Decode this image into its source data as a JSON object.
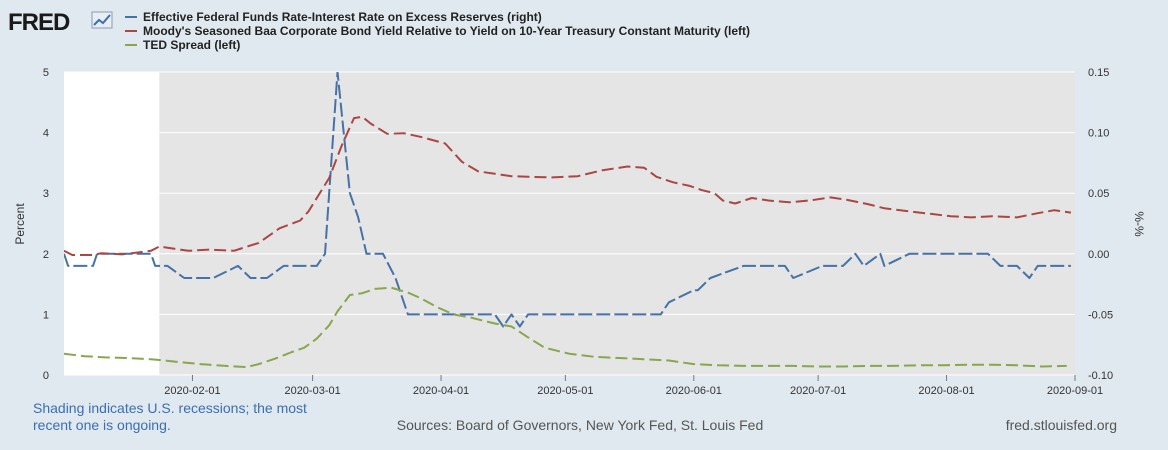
{
  "logo": {
    "text": "FRED"
  },
  "footer": {
    "shading_note_line1": "Shading indicates U.S. recessions; the most",
    "shading_note_line2": "recent one is ongoing.",
    "sources": "Sources: Board of Governors, New York Fed, St. Louis Fed",
    "site": "fred.stlouisfed.org"
  },
  "chart_data": {
    "type": "line",
    "title": "",
    "ylabel_left": "Percent",
    "ylabel_right": "%-%",
    "ylim_left": [
      0,
      5
    ],
    "ylim_right": [
      -0.1,
      0.15
    ],
    "y_ticks_left": [
      "0",
      "1",
      "2",
      "3",
      "4",
      "5"
    ],
    "y_ticks_right": [
      "-0.10",
      "-0.05",
      "0.00",
      "0.05",
      "0.10",
      "0.15"
    ],
    "x_range_days": [
      0,
      244
    ],
    "x_ticks": [
      {
        "label": "2020-02-01",
        "day": 31
      },
      {
        "label": "2020-03-01",
        "day": 60
      },
      {
        "label": "2020-04-01",
        "day": 91
      },
      {
        "label": "2020-05-01",
        "day": 121
      },
      {
        "label": "2020-06-01",
        "day": 152
      },
      {
        "label": "2020-07-01",
        "day": 182
      },
      {
        "label": "2020-08-01",
        "day": 213
      },
      {
        "label": "2020-09-01",
        "day": 244
      }
    ],
    "recession_start_day": 23,
    "series": [
      {
        "name": "Effective Federal Funds Rate-Interest Rate on Excess Reserves (right)",
        "axis": "right",
        "color": "#4572a7",
        "points": [
          [
            0,
            0.0
          ],
          [
            1,
            -0.01
          ],
          [
            4,
            -0.01
          ],
          [
            7,
            -0.01
          ],
          [
            8,
            0.0
          ],
          [
            14,
            0.0
          ],
          [
            21,
            0.0
          ],
          [
            22,
            -0.01
          ],
          [
            25,
            -0.01
          ],
          [
            29,
            -0.02
          ],
          [
            36,
            -0.02
          ],
          [
            42,
            -0.01
          ],
          [
            45,
            -0.02
          ],
          [
            49,
            -0.02
          ],
          [
            53,
            -0.01
          ],
          [
            61,
            -0.01
          ],
          [
            63,
            0.0
          ],
          [
            66,
            0.15
          ],
          [
            69,
            0.05
          ],
          [
            71,
            0.03
          ],
          [
            73,
            0.0
          ],
          [
            77,
            0.0
          ],
          [
            80,
            -0.02
          ],
          [
            83,
            -0.05
          ],
          [
            97,
            -0.05
          ],
          [
            104,
            -0.05
          ],
          [
            106,
            -0.06
          ],
          [
            108,
            -0.05
          ],
          [
            110,
            -0.06
          ],
          [
            112,
            -0.05
          ],
          [
            122,
            -0.05
          ],
          [
            138,
            -0.05
          ],
          [
            144,
            -0.05
          ],
          [
            146,
            -0.04
          ],
          [
            149,
            -0.035
          ],
          [
            152,
            -0.03
          ],
          [
            153,
            -0.03
          ],
          [
            156,
            -0.02
          ],
          [
            164,
            -0.01
          ],
          [
            174,
            -0.01
          ],
          [
            176,
            -0.02
          ],
          [
            183,
            -0.01
          ],
          [
            188,
            -0.01
          ],
          [
            191,
            0.0
          ],
          [
            193,
            -0.01
          ],
          [
            197,
            0.0
          ],
          [
            198,
            -0.01
          ],
          [
            204,
            0.0
          ],
          [
            223,
            0.0
          ],
          [
            226,
            -0.01
          ],
          [
            230,
            -0.01
          ],
          [
            233,
            -0.02
          ],
          [
            235,
            -0.01
          ],
          [
            243,
            -0.01
          ]
        ]
      },
      {
        "name": "Moody's Seasoned Baa Corporate Bond Yield Relative to Yield on 10-Year Treasury Constant Maturity (left)",
        "axis": "left",
        "color": "#aa4643",
        "points": [
          [
            0,
            2.05
          ],
          [
            2,
            1.98
          ],
          [
            7,
            1.98
          ],
          [
            9,
            2.01
          ],
          [
            14,
            1.99
          ],
          [
            21,
            2.05
          ],
          [
            23,
            2.12
          ],
          [
            30,
            2.05
          ],
          [
            35,
            2.07
          ],
          [
            41,
            2.05
          ],
          [
            47,
            2.18
          ],
          [
            52,
            2.42
          ],
          [
            57,
            2.55
          ],
          [
            59,
            2.7
          ],
          [
            61,
            2.92
          ],
          [
            64,
            3.25
          ],
          [
            67,
            3.78
          ],
          [
            70,
            4.24
          ],
          [
            72,
            4.26
          ],
          [
            74,
            4.15
          ],
          [
            78,
            3.98
          ],
          [
            82,
            3.99
          ],
          [
            86,
            3.93
          ],
          [
            92,
            3.82
          ],
          [
            96,
            3.52
          ],
          [
            100,
            3.36
          ],
          [
            104,
            3.32
          ],
          [
            108,
            3.28
          ],
          [
            112,
            3.27
          ],
          [
            118,
            3.26
          ],
          [
            124,
            3.28
          ],
          [
            130,
            3.38
          ],
          [
            136,
            3.44
          ],
          [
            140,
            3.42
          ],
          [
            143,
            3.27
          ],
          [
            147,
            3.18
          ],
          [
            151,
            3.12
          ],
          [
            154,
            3.05
          ],
          [
            157,
            3.0
          ],
          [
            159,
            2.88
          ],
          [
            162,
            2.83
          ],
          [
            166,
            2.92
          ],
          [
            170,
            2.88
          ],
          [
            175,
            2.85
          ],
          [
            180,
            2.88
          ],
          [
            185,
            2.93
          ],
          [
            189,
            2.89
          ],
          [
            194,
            2.82
          ],
          [
            198,
            2.75
          ],
          [
            204,
            2.7
          ],
          [
            209,
            2.66
          ],
          [
            214,
            2.62
          ],
          [
            219,
            2.6
          ],
          [
            224,
            2.62
          ],
          [
            230,
            2.6
          ],
          [
            235,
            2.67
          ],
          [
            239,
            2.72
          ],
          [
            243,
            2.68
          ]
        ]
      },
      {
        "name": "TED Spread (left)",
        "axis": "left",
        "color": "#89a54e",
        "points": [
          [
            0,
            0.35
          ],
          [
            5,
            0.31
          ],
          [
            10,
            0.29
          ],
          [
            15,
            0.28
          ],
          [
            21,
            0.26
          ],
          [
            27,
            0.22
          ],
          [
            33,
            0.18
          ],
          [
            39,
            0.15
          ],
          [
            44,
            0.13
          ],
          [
            47,
            0.18
          ],
          [
            51,
            0.27
          ],
          [
            55,
            0.38
          ],
          [
            58,
            0.45
          ],
          [
            61,
            0.6
          ],
          [
            64,
            0.82
          ],
          [
            66,
            1.05
          ],
          [
            69,
            1.32
          ],
          [
            72,
            1.35
          ],
          [
            75,
            1.42
          ],
          [
            79,
            1.44
          ],
          [
            83,
            1.36
          ],
          [
            86,
            1.27
          ],
          [
            90,
            1.12
          ],
          [
            94,
            1.0
          ],
          [
            98,
            0.95
          ],
          [
            101,
            0.9
          ],
          [
            104,
            0.85
          ],
          [
            108,
            0.8
          ],
          [
            112,
            0.62
          ],
          [
            116,
            0.45
          ],
          [
            122,
            0.35
          ],
          [
            128,
            0.3
          ],
          [
            134,
            0.28
          ],
          [
            140,
            0.26
          ],
          [
            146,
            0.24
          ],
          [
            152,
            0.18
          ],
          [
            158,
            0.16
          ],
          [
            164,
            0.15
          ],
          [
            170,
            0.15
          ],
          [
            176,
            0.15
          ],
          [
            182,
            0.14
          ],
          [
            188,
            0.14
          ],
          [
            194,
            0.15
          ],
          [
            200,
            0.15
          ],
          [
            206,
            0.16
          ],
          [
            212,
            0.16
          ],
          [
            218,
            0.17
          ],
          [
            224,
            0.17
          ],
          [
            230,
            0.16
          ],
          [
            236,
            0.14
          ],
          [
            242,
            0.15
          ]
        ]
      }
    ]
  }
}
